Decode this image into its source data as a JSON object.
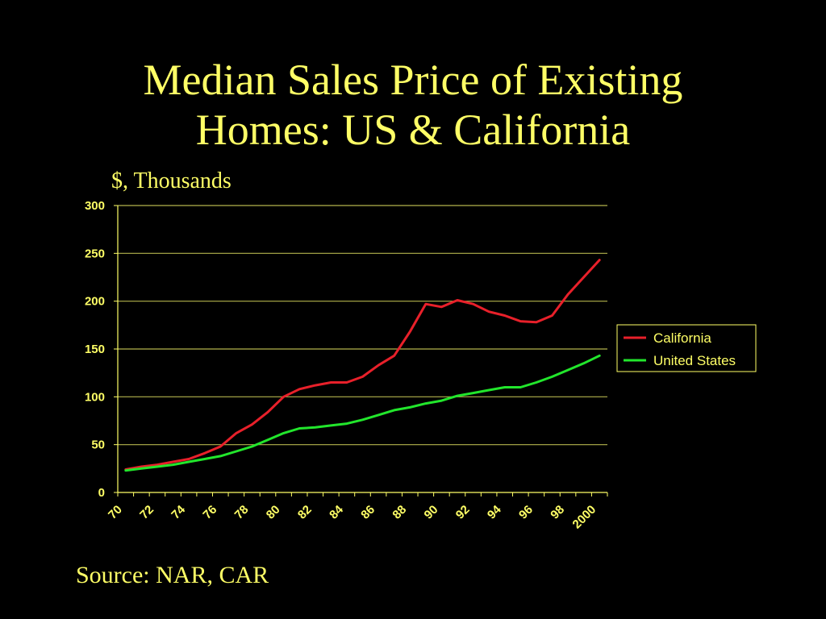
{
  "slide": {
    "title_line1": "Median Sales Price of Existing",
    "title_line2": "Homes: US & California",
    "units": "$, Thousands",
    "source": "Source: NAR, CAR"
  },
  "colors": {
    "background": "#000000",
    "text": "#ffff66",
    "gridline": "#b3b34d",
    "california": "#e8202a",
    "united_states": "#22e62c"
  },
  "chart_data": {
    "type": "line",
    "ylim": [
      0,
      300
    ],
    "yticks": [
      0,
      50,
      100,
      150,
      200,
      250,
      300
    ],
    "x_tick_labels": [
      "70",
      "72",
      "74",
      "76",
      "78",
      "80",
      "82",
      "84",
      "86",
      "88",
      "90",
      "92",
      "94",
      "96",
      "98",
      "2000"
    ],
    "x": [
      1970,
      1971,
      1972,
      1973,
      1974,
      1975,
      1976,
      1977,
      1978,
      1979,
      1980,
      1981,
      1982,
      1983,
      1984,
      1985,
      1986,
      1987,
      1988,
      1989,
      1990,
      1991,
      1992,
      1993,
      1994,
      1995,
      1996,
      1997,
      1998,
      1999,
      2000
    ],
    "grid": true,
    "legend_position": "right",
    "series": [
      {
        "name": "California",
        "values": [
          24,
          27,
          29,
          32,
          35,
          41,
          48,
          62,
          71,
          84,
          100,
          108,
          112,
          115,
          115,
          121,
          133,
          143,
          168,
          197,
          194,
          201,
          197,
          189,
          185,
          179,
          178,
          185,
          207,
          225,
          243
        ]
      },
      {
        "name": "United States",
        "values": [
          23,
          25,
          27,
          29,
          32,
          35,
          38,
          43,
          48,
          55,
          62,
          67,
          68,
          70,
          72,
          76,
          81,
          86,
          89,
          93,
          96,
          101,
          104,
          107,
          110,
          110,
          115,
          121,
          128,
          135,
          143
        ]
      }
    ]
  }
}
